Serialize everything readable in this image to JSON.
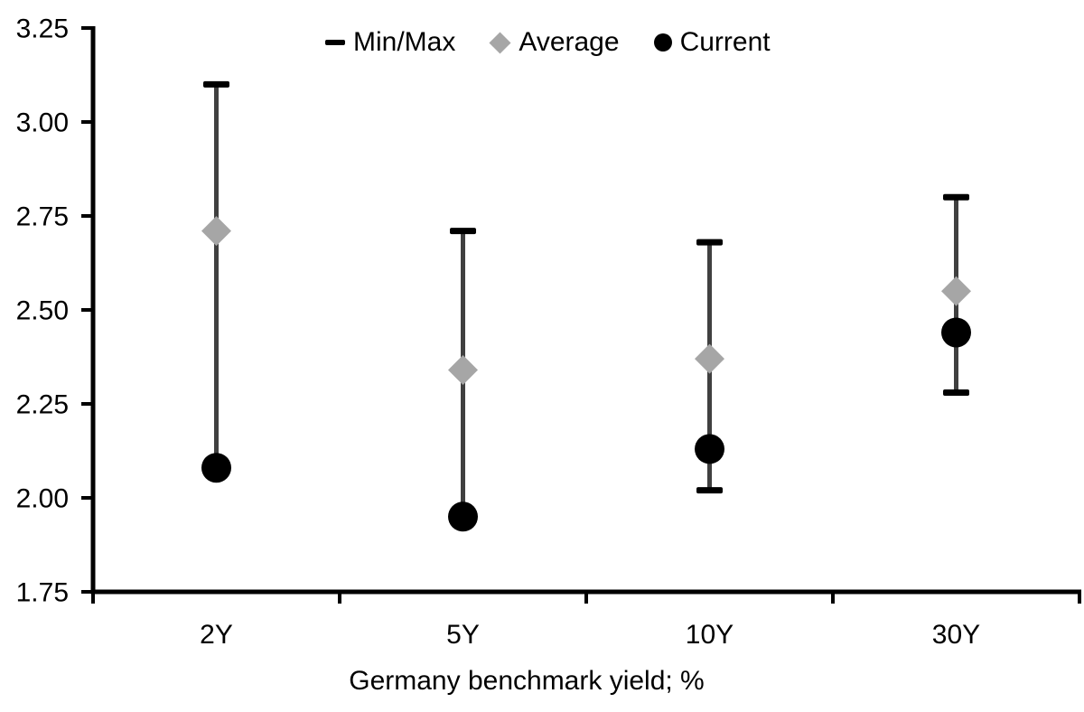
{
  "figure": {
    "background": "#ffffff"
  },
  "legend": {
    "items": [
      {
        "label": "Min/Max",
        "marker": "dash",
        "color": "#000000"
      },
      {
        "label": "Average",
        "marker": "diamond",
        "color": "#a6a6a6"
      },
      {
        "label": "Current",
        "marker": "circle",
        "color": "#000000"
      }
    ]
  },
  "chart_data": {
    "type": "scatter",
    "subtype": "min-max-range-with-markers",
    "categories": [
      "2Y",
      "5Y",
      "10Y",
      "30Y"
    ],
    "series": [
      {
        "name": "Min/Max",
        "role": "range",
        "min": [
          2.08,
          1.95,
          2.02,
          2.28
        ],
        "max": [
          3.1,
          2.71,
          2.68,
          2.8
        ],
        "cap_color": "#000000",
        "line_color": "#404040"
      },
      {
        "name": "Average",
        "role": "marker",
        "marker": "diamond",
        "values": [
          2.71,
          2.34,
          2.37,
          2.55
        ],
        "color": "#a6a6a6"
      },
      {
        "name": "Current",
        "role": "marker",
        "marker": "circle",
        "values": [
          2.08,
          1.95,
          2.13,
          2.44
        ],
        "color": "#000000"
      }
    ],
    "title": "",
    "xlabel": "Germany benchmark yield; %",
    "ylabel": "",
    "ylim": [
      1.75,
      3.25
    ],
    "ytick_step": 0.25,
    "yticks": [
      "1.75",
      "2.00",
      "2.25",
      "2.50",
      "2.75",
      "3.00",
      "3.25"
    ],
    "grid": false,
    "legend_position": "top",
    "axis_color": "#000000",
    "text_color": "#000000"
  }
}
